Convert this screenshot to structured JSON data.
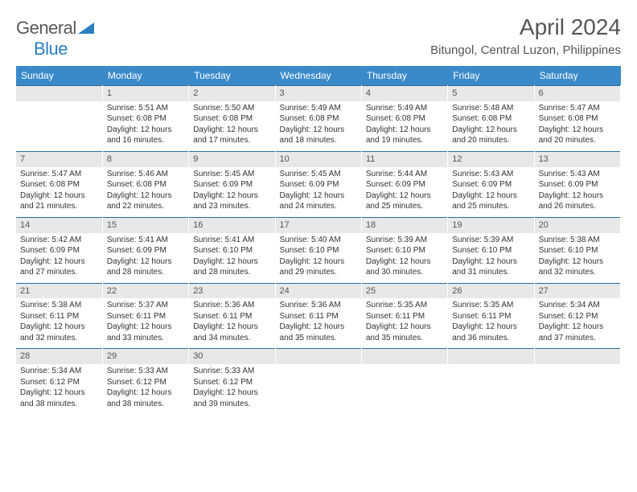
{
  "logo": {
    "word1": "General",
    "word2": "Blue"
  },
  "header": {
    "title": "April 2024",
    "location": "Bitungol, Central Luzon, Philippines"
  },
  "colors": {
    "header_bg": "#3a8ac9",
    "daynum_bg": "#e8e8e8",
    "rule": "#2b6aa0",
    "logo_blue": "#2b7ec2"
  },
  "dow": [
    "Sunday",
    "Monday",
    "Tuesday",
    "Wednesday",
    "Thursday",
    "Friday",
    "Saturday"
  ],
  "weeks": [
    [
      {
        "n": "",
        "sr": "",
        "ss": "",
        "dl": ""
      },
      {
        "n": "1",
        "sr": "Sunrise: 5:51 AM",
        "ss": "Sunset: 6:08 PM",
        "dl": "Daylight: 12 hours and 16 minutes."
      },
      {
        "n": "2",
        "sr": "Sunrise: 5:50 AM",
        "ss": "Sunset: 6:08 PM",
        "dl": "Daylight: 12 hours and 17 minutes."
      },
      {
        "n": "3",
        "sr": "Sunrise: 5:49 AM",
        "ss": "Sunset: 6:08 PM",
        "dl": "Daylight: 12 hours and 18 minutes."
      },
      {
        "n": "4",
        "sr": "Sunrise: 5:49 AM",
        "ss": "Sunset: 6:08 PM",
        "dl": "Daylight: 12 hours and 19 minutes."
      },
      {
        "n": "5",
        "sr": "Sunrise: 5:48 AM",
        "ss": "Sunset: 6:08 PM",
        "dl": "Daylight: 12 hours and 20 minutes."
      },
      {
        "n": "6",
        "sr": "Sunrise: 5:47 AM",
        "ss": "Sunset: 6:08 PM",
        "dl": "Daylight: 12 hours and 20 minutes."
      }
    ],
    [
      {
        "n": "7",
        "sr": "Sunrise: 5:47 AM",
        "ss": "Sunset: 6:08 PM",
        "dl": "Daylight: 12 hours and 21 minutes."
      },
      {
        "n": "8",
        "sr": "Sunrise: 5:46 AM",
        "ss": "Sunset: 6:08 PM",
        "dl": "Daylight: 12 hours and 22 minutes."
      },
      {
        "n": "9",
        "sr": "Sunrise: 5:45 AM",
        "ss": "Sunset: 6:09 PM",
        "dl": "Daylight: 12 hours and 23 minutes."
      },
      {
        "n": "10",
        "sr": "Sunrise: 5:45 AM",
        "ss": "Sunset: 6:09 PM",
        "dl": "Daylight: 12 hours and 24 minutes."
      },
      {
        "n": "11",
        "sr": "Sunrise: 5:44 AM",
        "ss": "Sunset: 6:09 PM",
        "dl": "Daylight: 12 hours and 25 minutes."
      },
      {
        "n": "12",
        "sr": "Sunrise: 5:43 AM",
        "ss": "Sunset: 6:09 PM",
        "dl": "Daylight: 12 hours and 25 minutes."
      },
      {
        "n": "13",
        "sr": "Sunrise: 5:43 AM",
        "ss": "Sunset: 6:09 PM",
        "dl": "Daylight: 12 hours and 26 minutes."
      }
    ],
    [
      {
        "n": "14",
        "sr": "Sunrise: 5:42 AM",
        "ss": "Sunset: 6:09 PM",
        "dl": "Daylight: 12 hours and 27 minutes."
      },
      {
        "n": "15",
        "sr": "Sunrise: 5:41 AM",
        "ss": "Sunset: 6:09 PM",
        "dl": "Daylight: 12 hours and 28 minutes."
      },
      {
        "n": "16",
        "sr": "Sunrise: 5:41 AM",
        "ss": "Sunset: 6:10 PM",
        "dl": "Daylight: 12 hours and 28 minutes."
      },
      {
        "n": "17",
        "sr": "Sunrise: 5:40 AM",
        "ss": "Sunset: 6:10 PM",
        "dl": "Daylight: 12 hours and 29 minutes."
      },
      {
        "n": "18",
        "sr": "Sunrise: 5:39 AM",
        "ss": "Sunset: 6:10 PM",
        "dl": "Daylight: 12 hours and 30 minutes."
      },
      {
        "n": "19",
        "sr": "Sunrise: 5:39 AM",
        "ss": "Sunset: 6:10 PM",
        "dl": "Daylight: 12 hours and 31 minutes."
      },
      {
        "n": "20",
        "sr": "Sunrise: 5:38 AM",
        "ss": "Sunset: 6:10 PM",
        "dl": "Daylight: 12 hours and 32 minutes."
      }
    ],
    [
      {
        "n": "21",
        "sr": "Sunrise: 5:38 AM",
        "ss": "Sunset: 6:11 PM",
        "dl": "Daylight: 12 hours and 32 minutes."
      },
      {
        "n": "22",
        "sr": "Sunrise: 5:37 AM",
        "ss": "Sunset: 6:11 PM",
        "dl": "Daylight: 12 hours and 33 minutes."
      },
      {
        "n": "23",
        "sr": "Sunrise: 5:36 AM",
        "ss": "Sunset: 6:11 PM",
        "dl": "Daylight: 12 hours and 34 minutes."
      },
      {
        "n": "24",
        "sr": "Sunrise: 5:36 AM",
        "ss": "Sunset: 6:11 PM",
        "dl": "Daylight: 12 hours and 35 minutes."
      },
      {
        "n": "25",
        "sr": "Sunrise: 5:35 AM",
        "ss": "Sunset: 6:11 PM",
        "dl": "Daylight: 12 hours and 35 minutes."
      },
      {
        "n": "26",
        "sr": "Sunrise: 5:35 AM",
        "ss": "Sunset: 6:11 PM",
        "dl": "Daylight: 12 hours and 36 minutes."
      },
      {
        "n": "27",
        "sr": "Sunrise: 5:34 AM",
        "ss": "Sunset: 6:12 PM",
        "dl": "Daylight: 12 hours and 37 minutes."
      }
    ],
    [
      {
        "n": "28",
        "sr": "Sunrise: 5:34 AM",
        "ss": "Sunset: 6:12 PM",
        "dl": "Daylight: 12 hours and 38 minutes."
      },
      {
        "n": "29",
        "sr": "Sunrise: 5:33 AM",
        "ss": "Sunset: 6:12 PM",
        "dl": "Daylight: 12 hours and 38 minutes."
      },
      {
        "n": "30",
        "sr": "Sunrise: 5:33 AM",
        "ss": "Sunset: 6:12 PM",
        "dl": "Daylight: 12 hours and 39 minutes."
      },
      {
        "n": "",
        "sr": "",
        "ss": "",
        "dl": ""
      },
      {
        "n": "",
        "sr": "",
        "ss": "",
        "dl": ""
      },
      {
        "n": "",
        "sr": "",
        "ss": "",
        "dl": ""
      },
      {
        "n": "",
        "sr": "",
        "ss": "",
        "dl": ""
      }
    ]
  ]
}
